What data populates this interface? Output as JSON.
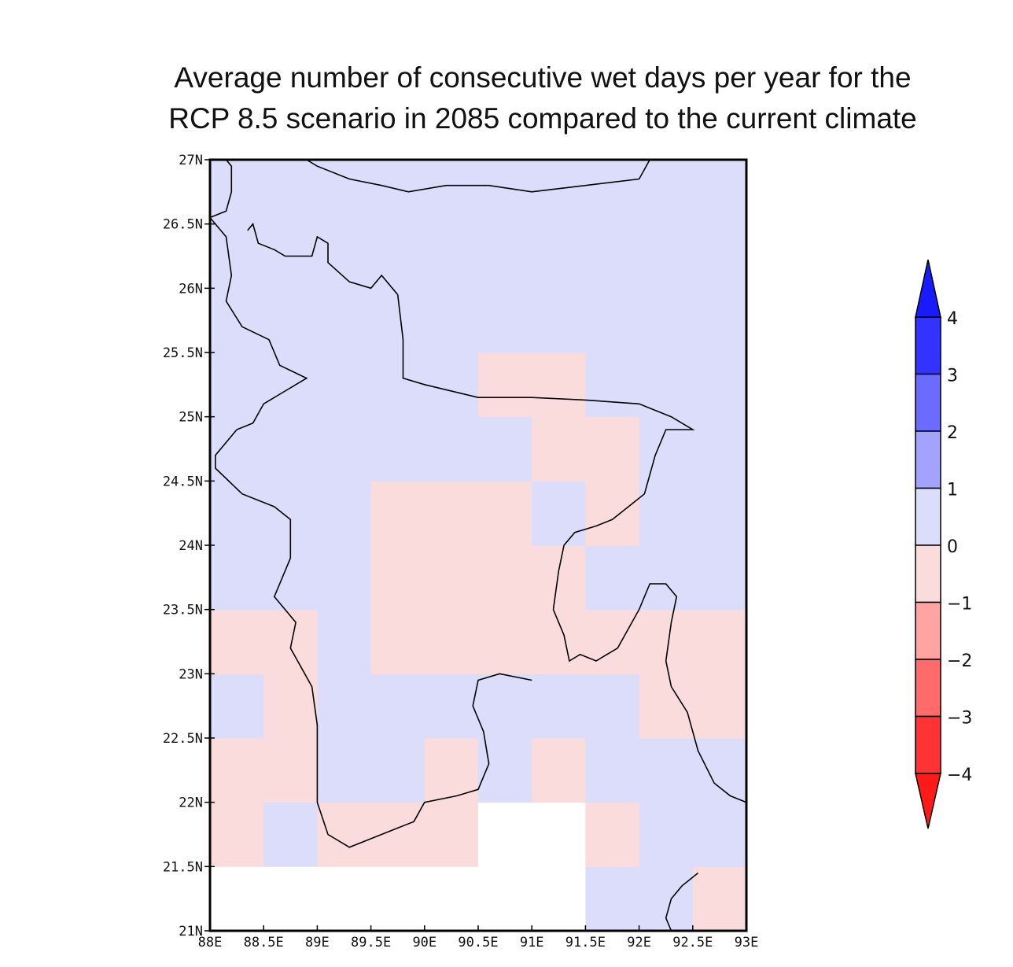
{
  "title": {
    "line1": "Average number of consecutive wet days per year for the",
    "line2": "RCP 8.5 scenario in 2085 compared to the current climate"
  },
  "map": {
    "lon_range": [
      88,
      93
    ],
    "lat_range": [
      21,
      27
    ],
    "cell_size_deg": 0.5,
    "x_tick_labels": [
      "88E",
      "88.5E",
      "89E",
      "89.5E",
      "90E",
      "90.5E",
      "91E",
      "91.5E",
      "92E",
      "92.5E",
      "93E"
    ],
    "y_tick_labels": [
      "27N",
      "26.5N",
      "26N",
      "25.5N",
      "25N",
      "24.5N",
      "24N",
      "23.5N",
      "23N",
      "22.5N",
      "22N",
      "21.5N",
      "21N"
    ],
    "default_category": "0 to 1",
    "negative_cells_lon_lat": [
      [
        90.5,
        25.0
      ],
      [
        91.0,
        25.0
      ],
      [
        91.0,
        24.5
      ],
      [
        91.5,
        24.5
      ],
      [
        89.5,
        24.0
      ],
      [
        90.0,
        24.0
      ],
      [
        90.5,
        24.0
      ],
      [
        91.5,
        24.0
      ],
      [
        89.5,
        23.5
      ],
      [
        90.0,
        23.5
      ],
      [
        90.5,
        23.5
      ],
      [
        91.0,
        23.5
      ],
      [
        88.0,
        23.0
      ],
      [
        88.5,
        23.0
      ],
      [
        89.5,
        23.0
      ],
      [
        90.0,
        23.0
      ],
      [
        90.5,
        23.0
      ],
      [
        91.0,
        23.0
      ],
      [
        91.5,
        23.0
      ],
      [
        92.0,
        23.0
      ],
      [
        92.5,
        23.0
      ],
      [
        88.5,
        22.5
      ],
      [
        92.0,
        22.5
      ],
      [
        92.5,
        22.5
      ],
      [
        88.0,
        22.0
      ],
      [
        88.5,
        22.0
      ],
      [
        90.0,
        22.0
      ],
      [
        91.0,
        22.0
      ],
      [
        88.0,
        21.5
      ],
      [
        89.0,
        21.5
      ],
      [
        89.5,
        21.5
      ],
      [
        90.0,
        21.5
      ],
      [
        91.5,
        21.5
      ],
      [
        92.5,
        21.0
      ]
    ],
    "no_data_cells_lon_lat": [
      [
        88.0,
        21.0
      ],
      [
        88.5,
        21.0
      ],
      [
        89.0,
        21.0
      ],
      [
        89.5,
        21.0
      ],
      [
        90.0,
        21.0
      ],
      [
        90.5,
        21.0
      ],
      [
        91.0,
        21.0
      ],
      [
        90.5,
        21.5
      ],
      [
        91.0,
        21.5
      ]
    ],
    "coastline_lonlat": [
      [
        [
          88.0,
          26.55
        ],
        [
          88.15,
          26.6
        ],
        [
          88.2,
          26.75
        ],
        [
          88.2,
          26.95
        ],
        [
          88.15,
          27.0
        ]
      ],
      [
        [
          88.9,
          27.0
        ],
        [
          89.0,
          26.95
        ],
        [
          89.3,
          26.85
        ],
        [
          89.6,
          26.8
        ],
        [
          89.85,
          26.75
        ],
        [
          90.2,
          26.8
        ],
        [
          90.6,
          26.8
        ],
        [
          91.0,
          26.75
        ],
        [
          91.5,
          26.8
        ],
        [
          92.0,
          26.85
        ],
        [
          92.1,
          27.0
        ]
      ],
      [
        [
          88.35,
          26.45
        ],
        [
          88.4,
          26.5
        ],
        [
          88.45,
          26.35
        ],
        [
          88.6,
          26.3
        ],
        [
          88.7,
          26.25
        ],
        [
          88.95,
          26.25
        ],
        [
          89.0,
          26.4
        ],
        [
          89.1,
          26.35
        ],
        [
          89.1,
          26.2
        ],
        [
          89.3,
          26.05
        ],
        [
          89.5,
          26.0
        ],
        [
          89.6,
          26.1
        ],
        [
          89.75,
          25.95
        ],
        [
          89.8,
          25.6
        ],
        [
          89.8,
          25.3
        ],
        [
          90.0,
          25.25
        ],
        [
          90.5,
          25.15
        ],
        [
          91.0,
          25.15
        ],
        [
          91.5,
          25.13
        ],
        [
          92.0,
          25.1
        ],
        [
          92.3,
          25.0
        ],
        [
          92.5,
          24.9
        ],
        [
          92.25,
          24.9
        ],
        [
          92.15,
          24.7
        ],
        [
          92.05,
          24.4
        ],
        [
          91.9,
          24.3
        ],
        [
          91.75,
          24.2
        ],
        [
          91.6,
          24.15
        ],
        [
          91.4,
          24.1
        ],
        [
          91.3,
          24.0
        ],
        [
          91.25,
          23.8
        ],
        [
          91.2,
          23.5
        ],
        [
          91.3,
          23.3
        ],
        [
          91.35,
          23.1
        ],
        [
          91.45,
          23.15
        ],
        [
          91.6,
          23.1
        ],
        [
          91.8,
          23.2
        ],
        [
          92.0,
          23.5
        ],
        [
          92.1,
          23.7
        ],
        [
          92.25,
          23.7
        ],
        [
          92.35,
          23.6
        ],
        [
          92.3,
          23.4
        ],
        [
          92.25,
          23.1
        ],
        [
          92.3,
          22.9
        ],
        [
          92.45,
          22.7
        ],
        [
          92.55,
          22.4
        ],
        [
          92.7,
          22.15
        ],
        [
          92.85,
          22.05
        ],
        [
          93.0,
          22.0
        ]
      ],
      [
        [
          88.0,
          26.55
        ],
        [
          88.15,
          26.4
        ],
        [
          88.2,
          26.1
        ],
        [
          88.15,
          25.9
        ],
        [
          88.3,
          25.7
        ],
        [
          88.55,
          25.6
        ],
        [
          88.65,
          25.4
        ],
        [
          88.9,
          25.3
        ],
        [
          88.7,
          25.2
        ],
        [
          88.5,
          25.1
        ],
        [
          88.4,
          24.95
        ],
        [
          88.25,
          24.9
        ],
        [
          88.05,
          24.7
        ],
        [
          88.05,
          24.6
        ],
        [
          88.3,
          24.4
        ],
        [
          88.6,
          24.3
        ],
        [
          88.75,
          24.2
        ],
        [
          88.75,
          23.9
        ],
        [
          88.6,
          23.6
        ],
        [
          88.8,
          23.4
        ],
        [
          88.75,
          23.2
        ],
        [
          88.95,
          22.9
        ],
        [
          89.0,
          22.6
        ],
        [
          89.0,
          22.0
        ],
        [
          89.1,
          21.75
        ],
        [
          89.3,
          21.65
        ],
        [
          89.6,
          21.75
        ],
        [
          89.9,
          21.85
        ],
        [
          90.0,
          22.0
        ],
        [
          90.3,
          22.05
        ],
        [
          90.5,
          22.1
        ],
        [
          90.6,
          22.3
        ],
        [
          90.55,
          22.55
        ],
        [
          90.45,
          22.75
        ],
        [
          90.5,
          22.95
        ],
        [
          90.7,
          23.0
        ],
        [
          91.0,
          22.95
        ]
      ],
      [
        [
          92.55,
          21.45
        ],
        [
          92.4,
          21.35
        ],
        [
          92.3,
          21.25
        ],
        [
          92.25,
          21.1
        ],
        [
          92.3,
          21.0
        ]
      ]
    ],
    "colorbar": {
      "labels": [
        "4",
        "3",
        "2",
        "1",
        "0",
        "−1",
        "−2",
        "−3",
        "−4"
      ],
      "colors": {
        "above_4": "#1a1aff",
        "3_to_4": "#3333ff",
        "2_to_3": "#6b6bff",
        "1_to_2": "#a3a3ff",
        "0_to_1": "#dcdcfb",
        "minus1_to_0": "#fbdcdc",
        "minus2_to_minus1": "#ffa3a3",
        "minus3_to_minus2": "#ff6b6b",
        "minus4_to_minus3": "#ff3333",
        "below_minus4": "#ff1a1a"
      }
    }
  }
}
